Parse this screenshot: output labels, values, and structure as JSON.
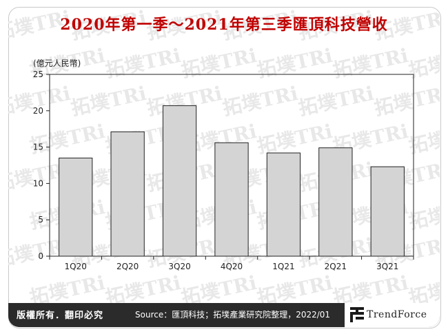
{
  "title": "2020年第一季～2021年第三季匯頂科技營收",
  "footer": {
    "rights": "版權所有．翻印必究",
    "source": "Source：匯頂科技；拓墣產業研究院整理，2022/01"
  },
  "brand": {
    "name": "TrendForce"
  },
  "watermark": {
    "text": "拓墣TRi"
  },
  "colors": {
    "title": "#c00000",
    "bar": "#d4d4d4",
    "footer_bg": "#2b2b2b"
  },
  "chart_data": {
    "type": "bar",
    "title": "",
    "ylabel": "(億元人民幣)",
    "xlabel": "",
    "categories": [
      "1Q20",
      "2Q20",
      "3Q20",
      "4Q20",
      "1Q21",
      "2Q21",
      "3Q21"
    ],
    "values": [
      13.5,
      17.1,
      20.7,
      15.6,
      14.2,
      14.9,
      12.3
    ],
    "ylim": [
      0,
      25
    ],
    "yticks": [
      0,
      5,
      10,
      15,
      20,
      25
    ],
    "grid": false,
    "legend": "none"
  }
}
